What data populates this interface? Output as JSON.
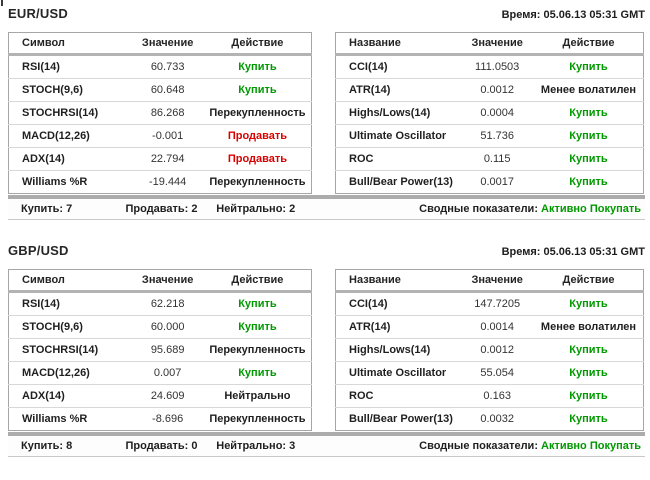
{
  "colors": {
    "buy": "#009900",
    "sell": "#dd0000",
    "summary_accent": "#009900"
  },
  "sections": [
    {
      "pair": "EUR/USD",
      "time": "Время: 05.06.13 05:31 GMT",
      "left_table": {
        "headers": [
          "Символ",
          "Значение",
          "Действие"
        ],
        "rows": [
          {
            "name": "RSI(14)",
            "value": "60.733",
            "action": "Купить",
            "action_type": "buy"
          },
          {
            "name": "STOCH(9,6)",
            "value": "60.648",
            "action": "Купить",
            "action_type": "buy"
          },
          {
            "name": "STOCHRSI(14)",
            "value": "86.268",
            "action": "Перекупленность",
            "action_type": "neutral"
          },
          {
            "name": "MACD(12,26)",
            "value": "-0.001",
            "action": "Продавать",
            "action_type": "sell"
          },
          {
            "name": "ADX(14)",
            "value": "22.794",
            "action": "Продавать",
            "action_type": "sell"
          },
          {
            "name": "Williams %R",
            "value": "-19.444",
            "action": "Перекупленность",
            "action_type": "neutral"
          }
        ]
      },
      "right_table": {
        "headers": [
          "Название",
          "Значение",
          "Действие"
        ],
        "rows": [
          {
            "name": "CCI(14)",
            "value": "111.0503",
            "action": "Купить",
            "action_type": "buy"
          },
          {
            "name": "ATR(14)",
            "value": "0.0012",
            "action": "Менее волатилен",
            "action_type": "neutral"
          },
          {
            "name": "Highs/Lows(14)",
            "value": "0.0004",
            "action": "Купить",
            "action_type": "buy"
          },
          {
            "name": "Ultimate Oscillator",
            "value": "51.736",
            "action": "Купить",
            "action_type": "buy"
          },
          {
            "name": "ROC",
            "value": "0.115",
            "action": "Купить",
            "action_type": "buy"
          },
          {
            "name": "Bull/Bear Power(13)",
            "value": "0.0017",
            "action": "Купить",
            "action_type": "buy"
          }
        ]
      },
      "summary": {
        "buy": "Купить: 7",
        "sell": "Продавать: 2",
        "neutral": "Нейтрально: 2",
        "overall_label": "Сводные показатели:",
        "overall_value": "Активно Покупать"
      }
    },
    {
      "pair": "GBP/USD",
      "time": "Время: 05.06.13 05:31 GMT",
      "left_table": {
        "headers": [
          "Символ",
          "Значение",
          "Действие"
        ],
        "rows": [
          {
            "name": "RSI(14)",
            "value": "62.218",
            "action": "Купить",
            "action_type": "buy"
          },
          {
            "name": "STOCH(9,6)",
            "value": "60.000",
            "action": "Купить",
            "action_type": "buy"
          },
          {
            "name": "STOCHRSI(14)",
            "value": "95.689",
            "action": "Перекупленность",
            "action_type": "neutral"
          },
          {
            "name": "MACD(12,26)",
            "value": "0.007",
            "action": "Купить",
            "action_type": "buy"
          },
          {
            "name": "ADX(14)",
            "value": "24.609",
            "action": "Нейтрально",
            "action_type": "neutral"
          },
          {
            "name": "Williams %R",
            "value": "-8.696",
            "action": "Перекупленность",
            "action_type": "neutral"
          }
        ]
      },
      "right_table": {
        "headers": [
          "Название",
          "Значение",
          "Действие"
        ],
        "rows": [
          {
            "name": "CCI(14)",
            "value": "147.7205",
            "action": "Купить",
            "action_type": "buy"
          },
          {
            "name": "ATR(14)",
            "value": "0.0014",
            "action": "Менее волатилен",
            "action_type": "neutral"
          },
          {
            "name": "Highs/Lows(14)",
            "value": "0.0012",
            "action": "Купить",
            "action_type": "buy"
          },
          {
            "name": "Ultimate Oscillator",
            "value": "55.054",
            "action": "Купить",
            "action_type": "buy"
          },
          {
            "name": "ROC",
            "value": "0.163",
            "action": "Купить",
            "action_type": "buy"
          },
          {
            "name": "Bull/Bear Power(13)",
            "value": "0.0032",
            "action": "Купить",
            "action_type": "buy"
          }
        ]
      },
      "summary": {
        "buy": "Купить: 8",
        "sell": "Продавать: 0",
        "neutral": "Нейтрально: 3",
        "overall_label": "Сводные показатели:",
        "overall_value": "Активно Покупать"
      }
    }
  ]
}
